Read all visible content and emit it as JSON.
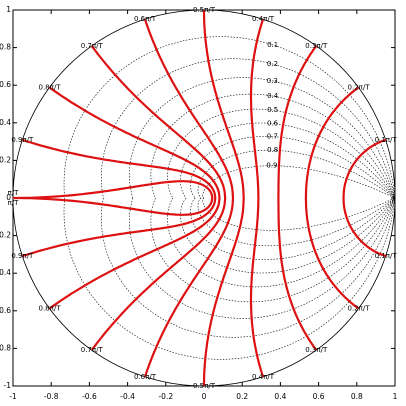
{
  "chart_data": {
    "type": "zgrid",
    "xlim": [
      -1,
      1
    ],
    "ylim": [
      -1,
      1
    ],
    "xticks": [
      -1,
      -0.8,
      -0.6,
      -0.4,
      -0.2,
      0,
      0.2,
      0.4,
      0.6,
      0.8,
      1
    ],
    "yticks": [
      -1,
      -0.8,
      -0.6,
      -0.4,
      -0.2,
      0,
      0.2,
      0.4,
      0.6,
      0.8,
      1
    ],
    "frequencies": {
      "color": "#dd1111",
      "values": [
        0.1,
        0.2,
        0.3,
        0.4,
        0.5,
        0.6,
        0.7,
        0.8,
        0.9,
        1
      ],
      "value_labels": [
        "0.1π/T",
        "0.2π/T",
        "0.3π/T",
        "0.4π/T",
        "0.5π/T",
        "0.6π/T",
        "0.7π/T",
        "0.8π/T",
        "0.9π/T",
        "π/T"
      ]
    },
    "damping": {
      "color": "#000000",
      "values": [
        0.1,
        0.2,
        0.3,
        0.4,
        0.5,
        0.6,
        0.7,
        0.8,
        0.9
      ]
    }
  }
}
